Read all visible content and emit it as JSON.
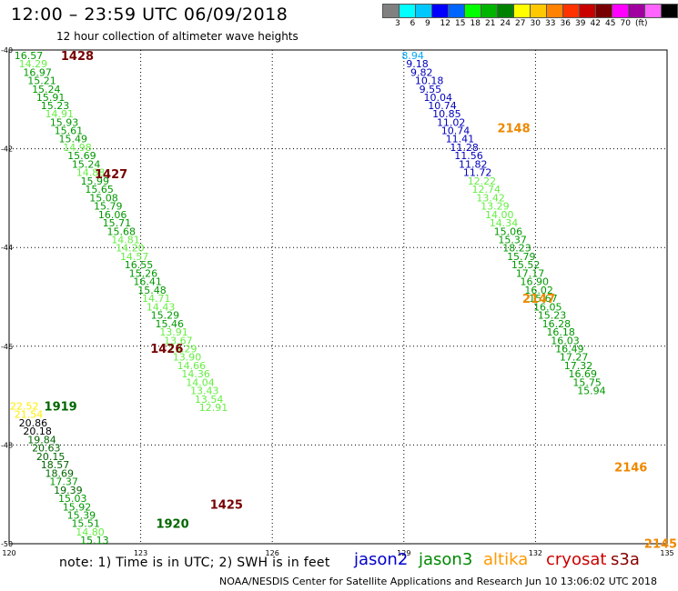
{
  "header": {
    "title": "12:00 – 23:59 UTC 06/09/2018",
    "subtitle": "12 hour collection of altimeter wave heights"
  },
  "legend": {
    "colors": [
      "#808080",
      "#00ffff",
      "#00c8ff",
      "#0000ff",
      "#0064ff",
      "#00ff00",
      "#00b400",
      "#008200",
      "#ffff00",
      "#ffc800",
      "#ff8200",
      "#ff3200",
      "#c80000",
      "#780000",
      "#ff00ff",
      "#a000a0",
      "#ff64ff",
      "#000000"
    ],
    "labels": [
      "3",
      "6",
      "9",
      "12",
      "15",
      "18",
      "21",
      "24",
      "27",
      "30",
      "33",
      "36",
      "39",
      "42",
      "45",
      "70",
      "(ft)"
    ]
  },
  "note": "note:  1) Time is in UTC;  2) SWH is in feet",
  "satellites": [
    {
      "name": "jason2",
      "color": "#0000cc"
    },
    {
      "name": "jason3",
      "color": "#008800"
    },
    {
      "name": "altika",
      "color": "#ff9900"
    },
    {
      "name": "cryosat",
      "color": "#cc0000"
    },
    {
      "name": "s3a",
      "color": "#880000"
    }
  ],
  "credit": "NOAA/NESDIS Center for Satellite Applications and Research   Jun 10 13:06:02 UTC 2018",
  "chart_data": {
    "type": "scatter",
    "x_ticks": [
      "120",
      "123",
      "126",
      "129",
      "132",
      "135"
    ],
    "y_ticks": [
      "-40",
      "-42",
      "-44",
      "-46",
      "-48",
      "-50"
    ],
    "xlim": [
      120,
      135
    ],
    "ylim": [
      -50,
      -40
    ],
    "grid": true,
    "time_labels": [
      {
        "text": "1428",
        "lon": 121.18,
        "lat": -40.11,
        "color": "#770000"
      },
      {
        "text": "1427",
        "lon": 121.95,
        "lat": -42.5,
        "color": "#770000"
      },
      {
        "text": "1426",
        "lon": 123.22,
        "lat": -46.04,
        "color": "#770000"
      },
      {
        "text": "1425",
        "lon": 124.58,
        "lat": -49.2,
        "color": "#770000"
      },
      {
        "text": "1919",
        "lon": 120.8,
        "lat": -47.21,
        "color": "#006600"
      },
      {
        "text": "1920",
        "lon": 123.35,
        "lat": -49.59,
        "color": "#006600"
      },
      {
        "text": "2148",
        "lon": 131.13,
        "lat": -41.57,
        "color": "#ee8800"
      },
      {
        "text": "2147",
        "lon": 131.7,
        "lat": -45.03,
        "color": "#ee8800"
      },
      {
        "text": "2146",
        "lon": 133.8,
        "lat": -48.44,
        "color": "#ee8800"
      },
      {
        "text": "2145",
        "lon": 134.48,
        "lat": -49.99,
        "color": "#ee8800"
      }
    ],
    "tracks": [
      {
        "points": [
          {
            "lon": 120.12,
            "lat": -40.11,
            "v": "16.57",
            "c": "#009900"
          },
          {
            "lon": 120.22,
            "lat": -40.28,
            "v": "14.29",
            "c": "#66ee44"
          },
          {
            "lon": 120.32,
            "lat": -40.45,
            "v": "16.97",
            "c": "#009900"
          },
          {
            "lon": 120.42,
            "lat": -40.62,
            "v": "15.21",
            "c": "#009900"
          },
          {
            "lon": 120.52,
            "lat": -40.79,
            "v": "15.24",
            "c": "#009900"
          },
          {
            "lon": 120.62,
            "lat": -40.96,
            "v": "15.91",
            "c": "#009900"
          },
          {
            "lon": 120.72,
            "lat": -41.12,
            "v": "15.23",
            "c": "#009900"
          },
          {
            "lon": 120.82,
            "lat": -41.29,
            "v": "14.91",
            "c": "#66ee44"
          },
          {
            "lon": 120.93,
            "lat": -41.46,
            "v": "15.93",
            "c": "#009900"
          },
          {
            "lon": 121.03,
            "lat": -41.63,
            "v": "15.61",
            "c": "#009900"
          },
          {
            "lon": 121.13,
            "lat": -41.8,
            "v": "15.49",
            "c": "#009900"
          },
          {
            "lon": 121.23,
            "lat": -41.97,
            "v": "14.98",
            "c": "#66ee44"
          },
          {
            "lon": 121.33,
            "lat": -42.14,
            "v": "15.69",
            "c": "#009900"
          },
          {
            "lon": 121.43,
            "lat": -42.31,
            "v": "15.24",
            "c": "#009900"
          },
          {
            "lon": 121.53,
            "lat": -42.48,
            "v": "14.88",
            "c": "#66ee44"
          },
          {
            "lon": 121.63,
            "lat": -42.65,
            "v": "15.99",
            "c": "#009900"
          },
          {
            "lon": 121.73,
            "lat": -42.82,
            "v": "15.65",
            "c": "#009900"
          },
          {
            "lon": 121.83,
            "lat": -42.99,
            "v": "15.08",
            "c": "#009900"
          },
          {
            "lon": 121.93,
            "lat": -43.16,
            "v": "15.79",
            "c": "#009900"
          },
          {
            "lon": 122.03,
            "lat": -43.33,
            "v": "16.06",
            "c": "#009900"
          },
          {
            "lon": 122.13,
            "lat": -43.5,
            "v": "15.71",
            "c": "#009900"
          },
          {
            "lon": 122.23,
            "lat": -43.67,
            "v": "15.68",
            "c": "#009900"
          },
          {
            "lon": 122.33,
            "lat": -43.84,
            "v": "14.81",
            "c": "#66ee44"
          },
          {
            "lon": 122.43,
            "lat": -44.01,
            "v": "14.20",
            "c": "#66ee44"
          },
          {
            "lon": 122.53,
            "lat": -44.18,
            "v": "14.57",
            "c": "#66ee44"
          },
          {
            "lon": 122.63,
            "lat": -44.35,
            "v": "16.55",
            "c": "#009900"
          },
          {
            "lon": 122.73,
            "lat": -44.52,
            "v": "15.26",
            "c": "#009900"
          },
          {
            "lon": 122.83,
            "lat": -44.69,
            "v": "16.41",
            "c": "#009900"
          },
          {
            "lon": 122.93,
            "lat": -44.86,
            "v": "15.48",
            "c": "#009900"
          },
          {
            "lon": 123.03,
            "lat": -45.03,
            "v": "14.71",
            "c": "#66ee44"
          },
          {
            "lon": 123.13,
            "lat": -45.2,
            "v": "14.43",
            "c": "#66ee44"
          },
          {
            "lon": 123.23,
            "lat": -45.37,
            "v": "15.29",
            "c": "#009900"
          },
          {
            "lon": 123.33,
            "lat": -45.54,
            "v": "15.46",
            "c": "#009900"
          },
          {
            "lon": 123.43,
            "lat": -45.71,
            "v": "13.91",
            "c": "#66ee44"
          },
          {
            "lon": 123.53,
            "lat": -45.88,
            "v": "13.67",
            "c": "#66ee44"
          },
          {
            "lon": 123.63,
            "lat": -46.05,
            "v": "13.29",
            "c": "#66ee44"
          },
          {
            "lon": 123.73,
            "lat": -46.22,
            "v": "13.90",
            "c": "#66ee44"
          },
          {
            "lon": 123.83,
            "lat": -46.39,
            "v": "14.66",
            "c": "#66ee44"
          },
          {
            "lon": 123.93,
            "lat": -46.56,
            "v": "14.36",
            "c": "#66ee44"
          },
          {
            "lon": 124.03,
            "lat": -46.73,
            "v": "14.04",
            "c": "#66ee44"
          },
          {
            "lon": 124.13,
            "lat": -46.9,
            "v": "13.43",
            "c": "#66ee44"
          },
          {
            "lon": 124.23,
            "lat": -47.07,
            "v": "13.54",
            "c": "#66ee44"
          },
          {
            "lon": 124.33,
            "lat": -47.24,
            "v": "12.91",
            "c": "#66ee44"
          }
        ]
      },
      {
        "points": [
          {
            "lon": 120.02,
            "lat": -47.21,
            "v": "22.52",
            "c": "#ffee00"
          },
          {
            "lon": 120.12,
            "lat": -47.38,
            "v": "21.54",
            "c": "#ffee00"
          },
          {
            "lon": 120.22,
            "lat": -47.55,
            "v": "20.86",
            "c": "#000000"
          },
          {
            "lon": 120.32,
            "lat": -47.72,
            "v": "20.18",
            "c": "#000000"
          },
          {
            "lon": 120.42,
            "lat": -47.89,
            "v": "19.84",
            "c": "#006600"
          },
          {
            "lon": 120.52,
            "lat": -48.06,
            "v": "20.63",
            "c": "#006600"
          },
          {
            "lon": 120.62,
            "lat": -48.23,
            "v": "20.15",
            "c": "#006600"
          },
          {
            "lon": 120.72,
            "lat": -48.4,
            "v": "18.57",
            "c": "#006600"
          },
          {
            "lon": 120.82,
            "lat": -48.57,
            "v": "18.69",
            "c": "#006600"
          },
          {
            "lon": 120.92,
            "lat": -48.74,
            "v": "17.37",
            "c": "#009900"
          },
          {
            "lon": 121.02,
            "lat": -48.91,
            "v": "19.39",
            "c": "#006600"
          },
          {
            "lon": 121.12,
            "lat": -49.08,
            "v": "15.03",
            "c": "#009900"
          },
          {
            "lon": 121.22,
            "lat": -49.25,
            "v": "15.92",
            "c": "#009900"
          },
          {
            "lon": 121.32,
            "lat": -49.42,
            "v": "15.39",
            "c": "#009900"
          },
          {
            "lon": 121.42,
            "lat": -49.59,
            "v": "15.51",
            "c": "#009900"
          },
          {
            "lon": 121.52,
            "lat": -49.76,
            "v": "14.80",
            "c": "#66ee44"
          },
          {
            "lon": 121.62,
            "lat": -49.93,
            "v": "15.13",
            "c": "#009900"
          }
        ]
      },
      {
        "points": [
          {
            "lon": 128.95,
            "lat": -40.11,
            "v": "8.94",
            "c": "#00aaff"
          },
          {
            "lon": 129.05,
            "lat": -40.28,
            "v": "9.18",
            "c": "#0000bb"
          },
          {
            "lon": 129.15,
            "lat": -40.45,
            "v": "9.82",
            "c": "#0000bb"
          },
          {
            "lon": 129.25,
            "lat": -40.62,
            "v": "10.18",
            "c": "#0000bb"
          },
          {
            "lon": 129.35,
            "lat": -40.79,
            "v": "9.55",
            "c": "#0000bb"
          },
          {
            "lon": 129.45,
            "lat": -40.96,
            "v": "10.04",
            "c": "#0000bb"
          },
          {
            "lon": 129.55,
            "lat": -41.12,
            "v": "10.74",
            "c": "#0000bb"
          },
          {
            "lon": 129.65,
            "lat": -41.29,
            "v": "10.85",
            "c": "#0000bb"
          },
          {
            "lon": 129.75,
            "lat": -41.46,
            "v": "11.02",
            "c": "#0000bb"
          },
          {
            "lon": 129.85,
            "lat": -41.63,
            "v": "10.74",
            "c": "#0000bb"
          },
          {
            "lon": 129.95,
            "lat": -41.8,
            "v": "11.41",
            "c": "#0000bb"
          },
          {
            "lon": 130.05,
            "lat": -41.97,
            "v": "11.28",
            "c": "#0000bb"
          },
          {
            "lon": 130.15,
            "lat": -42.14,
            "v": "11.56",
            "c": "#0000bb"
          },
          {
            "lon": 130.25,
            "lat": -42.31,
            "v": "11.82",
            "c": "#0000bb"
          },
          {
            "lon": 130.35,
            "lat": -42.48,
            "v": "11.72",
            "c": "#0000bb"
          },
          {
            "lon": 130.45,
            "lat": -42.65,
            "v": "12.22",
            "c": "#66ee44"
          },
          {
            "lon": 130.55,
            "lat": -42.82,
            "v": "12.74",
            "c": "#66ee44"
          },
          {
            "lon": 130.65,
            "lat": -42.99,
            "v": "13.42",
            "c": "#66ee44"
          },
          {
            "lon": 130.75,
            "lat": -43.16,
            "v": "13.29",
            "c": "#66ee44"
          },
          {
            "lon": 130.85,
            "lat": -43.33,
            "v": "14.00",
            "c": "#66ee44"
          },
          {
            "lon": 130.95,
            "lat": -43.5,
            "v": "14.34",
            "c": "#66ee44"
          },
          {
            "lon": 131.05,
            "lat": -43.67,
            "v": "15.06",
            "c": "#009900"
          },
          {
            "lon": 131.15,
            "lat": -43.84,
            "v": "15.37",
            "c": "#009900"
          },
          {
            "lon": 131.25,
            "lat": -44.01,
            "v": "18.23",
            "c": "#009900"
          },
          {
            "lon": 131.35,
            "lat": -44.18,
            "v": "15.79",
            "c": "#009900"
          },
          {
            "lon": 131.45,
            "lat": -44.35,
            "v": "15.52",
            "c": "#009900"
          },
          {
            "lon": 131.55,
            "lat": -44.52,
            "v": "17.17",
            "c": "#009900"
          },
          {
            "lon": 131.65,
            "lat": -44.69,
            "v": "16.90",
            "c": "#009900"
          },
          {
            "lon": 131.75,
            "lat": -44.86,
            "v": "16.02",
            "c": "#009900"
          },
          {
            "lon": 131.85,
            "lat": -45.03,
            "v": "15.67",
            "c": "#009900"
          },
          {
            "lon": 131.95,
            "lat": -45.2,
            "v": "16.05",
            "c": "#009900"
          },
          {
            "lon": 132.05,
            "lat": -45.37,
            "v": "15.23",
            "c": "#009900"
          },
          {
            "lon": 132.15,
            "lat": -45.54,
            "v": "16.28",
            "c": "#009900"
          },
          {
            "lon": 132.25,
            "lat": -45.71,
            "v": "16.18",
            "c": "#009900"
          },
          {
            "lon": 132.35,
            "lat": -45.88,
            "v": "16.03",
            "c": "#009900"
          },
          {
            "lon": 132.45,
            "lat": -46.05,
            "v": "16.49",
            "c": "#009900"
          },
          {
            "lon": 132.55,
            "lat": -46.22,
            "v": "17.27",
            "c": "#009900"
          },
          {
            "lon": 132.65,
            "lat": -46.39,
            "v": "17.32",
            "c": "#009900"
          },
          {
            "lon": 132.75,
            "lat": -46.56,
            "v": "16.69",
            "c": "#009900"
          },
          {
            "lon": 132.85,
            "lat": -46.73,
            "v": "15.75",
            "c": "#009900"
          },
          {
            "lon": 132.95,
            "lat": -46.9,
            "v": "15.94",
            "c": "#009900"
          }
        ]
      }
    ]
  }
}
